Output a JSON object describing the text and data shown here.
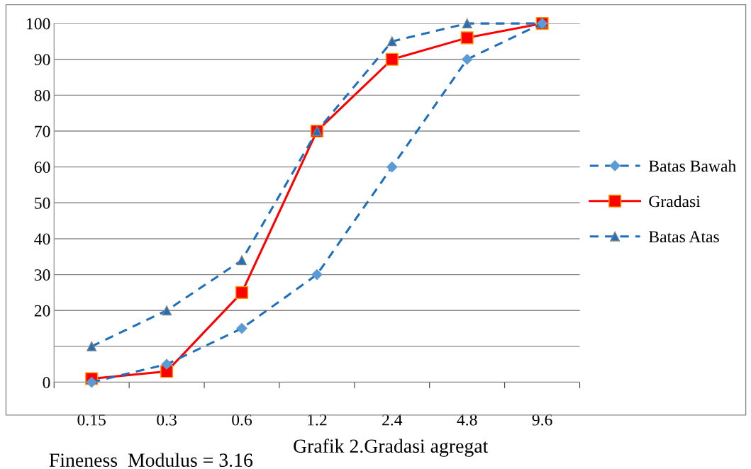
{
  "chart_data": {
    "type": "line",
    "title": "Grafik 2.Gradasi agregat",
    "annotations": [
      "Fineness  Modulus = 3.16"
    ],
    "categories": [
      "0.15",
      "0.3",
      "0.6",
      "1.2",
      "2.4",
      "4.8",
      "9.6"
    ],
    "series": [
      {
        "name": "Batas Bawah",
        "color": "#1f6fbf",
        "marker": "diamond",
        "line_style": "dashed",
        "values": [
          0,
          5,
          15,
          30,
          60,
          90,
          100
        ]
      },
      {
        "name": "Gradasi",
        "color": "#ff0000",
        "marker": "square",
        "line_style": "solid",
        "values": [
          1,
          3,
          25,
          70,
          90,
          96,
          100
        ]
      },
      {
        "name": "Batas Atas",
        "color": "#1f6fbf",
        "marker": "triangle",
        "line_style": "dashed",
        "values": [
          10,
          20,
          34,
          70,
          95,
          100,
          100
        ]
      }
    ],
    "ylim": [
      0,
      100
    ],
    "yticks": [
      0,
      {
        "value": 10,
        "label": null
      },
      20,
      30,
      40,
      50,
      60,
      70,
      80,
      90,
      100
    ],
    "grid": "y",
    "legend": "right"
  }
}
